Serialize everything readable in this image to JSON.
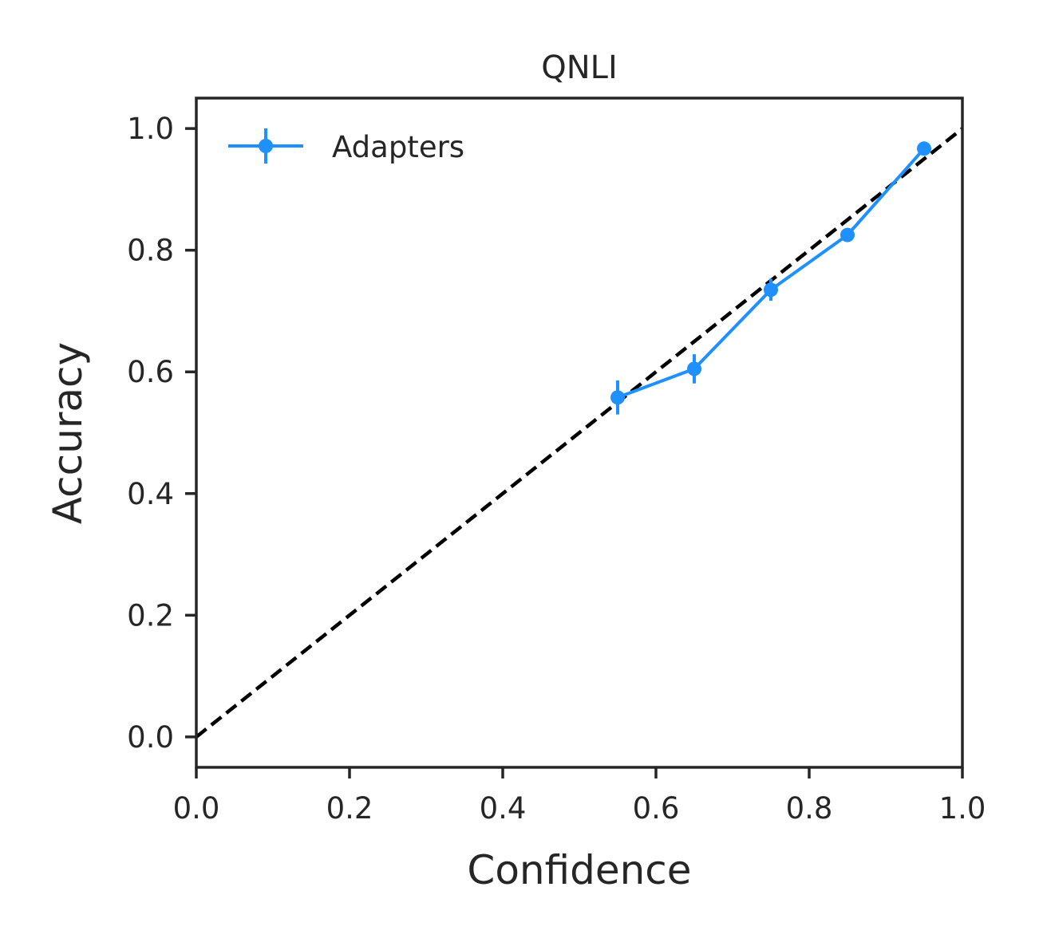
{
  "chart_data": {
    "type": "line",
    "title": "QNLI",
    "xlabel": "Confidence",
    "ylabel": "Accuracy",
    "xlim": [
      0.0,
      1.0
    ],
    "ylim": [
      -0.05,
      1.05
    ],
    "xticks": [
      "0.0",
      "0.2",
      "0.4",
      "0.6",
      "0.8",
      "1.0"
    ],
    "yticks": [
      "0.0",
      "0.2",
      "0.4",
      "0.6",
      "0.8",
      "1.0"
    ],
    "grid": false,
    "legend_position": "top-left",
    "series": [
      {
        "name": "Adapters",
        "color": "#1e90ff",
        "x": [
          0.55,
          0.65,
          0.75,
          0.85,
          0.95
        ],
        "y": [
          0.558,
          0.605,
          0.735,
          0.825,
          0.967
        ],
        "yerr": [
          0.028,
          0.024,
          0.018,
          0.01,
          0.006
        ]
      }
    ],
    "reference_line": {
      "x": [
        0.0,
        1.0
      ],
      "y": [
        0.0,
        1.0
      ],
      "color": "#000000",
      "style": "dashed"
    }
  }
}
